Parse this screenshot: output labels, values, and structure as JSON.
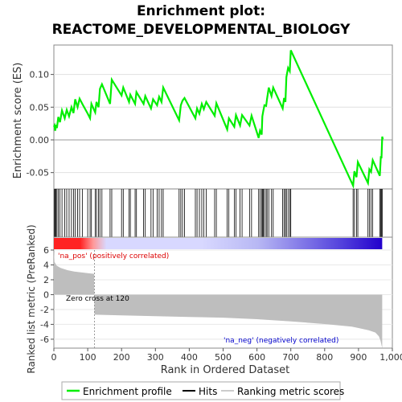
{
  "title_line1": "Enrichment plot:",
  "title_line2": "REACTOME_DEVELOPMENTAL_BIOLOGY",
  "colors": {
    "es_line": "#00ee00",
    "hits": "#000000",
    "metric_fill": "#bebebe",
    "pos_text": "#dd0000",
    "neg_text": "#0000cc",
    "heat_pos": "#ff2222",
    "heat_mid": "#d8d8ff",
    "heat_neg": "#2200cc"
  },
  "chart_data": [
    {
      "type": "line",
      "name": "enrichment-profile",
      "ylabel": "Enrichment score (ES)",
      "yticks": [
        "0.10",
        "0.05",
        "0.00",
        "-0.05"
      ],
      "yticks_values": [
        0.1,
        0.05,
        0.0,
        -0.05
      ],
      "ylim": [
        -0.075,
        0.145
      ],
      "xlim": [
        0,
        1000
      ],
      "points": [
        [
          0,
          0.02
        ],
        [
          2,
          0.022
        ],
        [
          4,
          0.014
        ],
        [
          6,
          0.023
        ],
        [
          9,
          0.018
        ],
        [
          13,
          0.035
        ],
        [
          18,
          0.027
        ],
        [
          24,
          0.045
        ],
        [
          32,
          0.033
        ],
        [
          38,
          0.046
        ],
        [
          45,
          0.036
        ],
        [
          52,
          0.05
        ],
        [
          58,
          0.041
        ],
        [
          63,
          0.062
        ],
        [
          70,
          0.05
        ],
        [
          76,
          0.063
        ],
        [
          84,
          0.055
        ],
        [
          100,
          0.04
        ],
        [
          107,
          0.033
        ],
        [
          111,
          0.055
        ],
        [
          122,
          0.042
        ],
        [
          126,
          0.058
        ],
        [
          132,
          0.05
        ],
        [
          136,
          0.078
        ],
        [
          142,
          0.085
        ],
        [
          166,
          0.055
        ],
        [
          171,
          0.092
        ],
        [
          200,
          0.068
        ],
        [
          205,
          0.08
        ],
        [
          222,
          0.058
        ],
        [
          226,
          0.069
        ],
        [
          240,
          0.055
        ],
        [
          244,
          0.073
        ],
        [
          265,
          0.055
        ],
        [
          270,
          0.067
        ],
        [
          287,
          0.048
        ],
        [
          293,
          0.062
        ],
        [
          305,
          0.053
        ],
        [
          311,
          0.066
        ],
        [
          318,
          0.058
        ],
        [
          323,
          0.08
        ],
        [
          370,
          0.03
        ],
        [
          375,
          0.053
        ],
        [
          380,
          0.06
        ],
        [
          386,
          0.064
        ],
        [
          418,
          0.033
        ],
        [
          423,
          0.048
        ],
        [
          430,
          0.04
        ],
        [
          437,
          0.055
        ],
        [
          443,
          0.047
        ],
        [
          450,
          0.058
        ],
        [
          475,
          0.037
        ],
        [
          480,
          0.056
        ],
        [
          512,
          0.016
        ],
        [
          517,
          0.033
        ],
        [
          533,
          0.02
        ],
        [
          538,
          0.038
        ],
        [
          550,
          0.022
        ],
        [
          556,
          0.038
        ],
        [
          578,
          0.022
        ],
        [
          584,
          0.037
        ],
        [
          605,
          0.003
        ],
        [
          609,
          0.014
        ],
        [
          614,
          0.008
        ],
        [
          616,
          0.036
        ],
        [
          619,
          0.045
        ],
        [
          622,
          0.053
        ],
        [
          627,
          0.052
        ],
        [
          630,
          0.063
        ],
        [
          635,
          0.08
        ],
        [
          643,
          0.067
        ],
        [
          648,
          0.08
        ],
        [
          676,
          0.048
        ],
        [
          680,
          0.064
        ],
        [
          684,
          0.058
        ],
        [
          687,
          0.096
        ],
        [
          692,
          0.11
        ],
        [
          697,
          0.105
        ],
        [
          700,
          0.137
        ],
        [
          884,
          -0.07
        ],
        [
          888,
          -0.048
        ],
        [
          894,
          -0.057
        ],
        [
          898,
          -0.034
        ],
        [
          928,
          -0.066
        ],
        [
          932,
          -0.045
        ],
        [
          937,
          -0.049
        ],
        [
          942,
          -0.031
        ],
        [
          963,
          -0.055
        ],
        [
          966,
          -0.025
        ],
        [
          968,
          -0.028
        ],
        [
          970,
          0.005
        ],
        [
          972,
          0.001
        ]
      ]
    },
    {
      "type": "scatter",
      "name": "hits",
      "x": [
        2,
        4,
        6,
        9,
        13,
        18,
        24,
        32,
        38,
        45,
        52,
        58,
        63,
        70,
        76,
        84,
        100,
        107,
        111,
        122,
        126,
        132,
        136,
        142,
        166,
        171,
        200,
        205,
        222,
        226,
        240,
        244,
        265,
        270,
        287,
        293,
        305,
        311,
        318,
        323,
        370,
        375,
        380,
        386,
        418,
        423,
        430,
        437,
        443,
        450,
        475,
        480,
        512,
        517,
        533,
        538,
        550,
        556,
        578,
        584,
        605,
        609,
        614,
        616,
        619,
        622,
        627,
        630,
        635,
        643,
        648,
        676,
        680,
        684,
        687,
        692,
        697,
        700,
        884,
        888,
        894,
        898,
        928,
        932,
        937,
        942,
        963,
        966,
        968,
        970
      ]
    },
    {
      "type": "area",
      "name": "ranked-list-metric",
      "ylabel": "Ranked list metric (PreRanked)",
      "xlabel": "Rank in Ordered Dataset",
      "yticks": [
        "6",
        "4",
        "2",
        "0",
        "-2",
        "-4",
        "-6"
      ],
      "yticks_values": [
        6,
        4,
        2,
        0,
        -2,
        -4,
        -6
      ],
      "xticks": [
        "0",
        "100",
        "200",
        "300",
        "400",
        "500",
        "600",
        "700",
        "800",
        "900",
        "1,000"
      ],
      "xticks_values": [
        0,
        100,
        200,
        300,
        400,
        500,
        600,
        700,
        800,
        900,
        1000
      ],
      "ylim": [
        -7.2,
        6
      ],
      "xlim": [
        0,
        1000
      ],
      "x": [
        0,
        2,
        8,
        20,
        40,
        60,
        80,
        100,
        119,
        120,
        121,
        200,
        300,
        400,
        500,
        600,
        700,
        800,
        880,
        900,
        930,
        950,
        960,
        965,
        968,
        970
      ],
      "values": [
        6.1,
        4.4,
        3.9,
        3.6,
        3.3,
        3.1,
        3.0,
        2.9,
        2.8,
        -2.6,
        -2.7,
        -2.8,
        -2.9,
        -3.0,
        -3.1,
        -3.3,
        -3.6,
        -3.95,
        -4.3,
        -4.5,
        -4.8,
        -5.1,
        -5.6,
        -6.2,
        -6.8,
        -7.2
      ]
    }
  ],
  "annotations": {
    "pos_label": "'na_pos' (positively correlated)",
    "neg_label": "'na_neg' (negatively correlated)",
    "zero_cross": "Zero cross at 120"
  },
  "legend": {
    "items": [
      {
        "label": "Enrichment profile",
        "icon": "green-line"
      },
      {
        "label": "Hits",
        "icon": "black-line"
      },
      {
        "label": "Ranking metric scores",
        "icon": "gray-line"
      }
    ]
  }
}
